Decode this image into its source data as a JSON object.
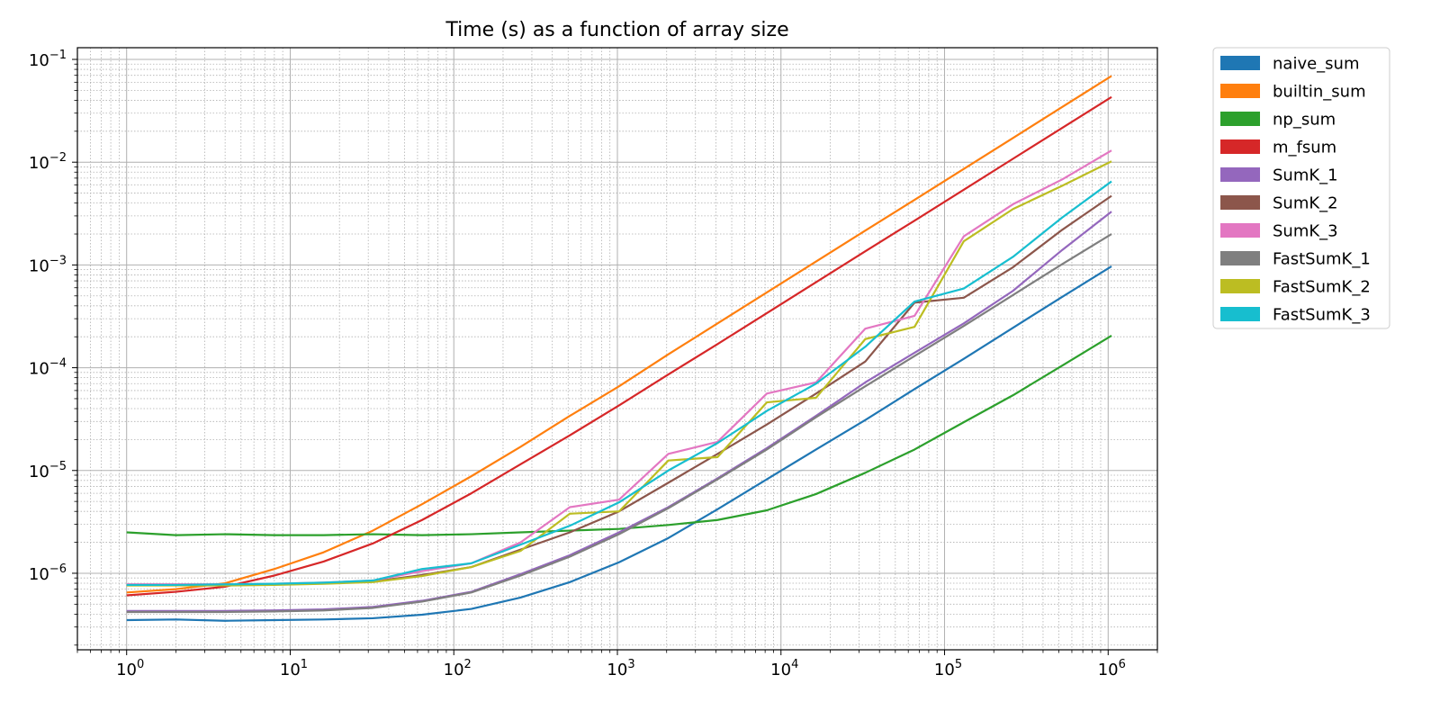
{
  "chart_data": {
    "type": "line",
    "title": "Time (s) as a function of array size",
    "xlabel": "",
    "ylabel": "",
    "xscale": "log",
    "yscale": "log",
    "xlim": [
      0.5,
      2000000
    ],
    "ylim": [
      1.8e-07,
      0.13
    ],
    "grid": "major and minor",
    "legend_position": "outside top-right",
    "x_ticks": [
      {
        "value": 1,
        "base": "10",
        "exp": "0"
      },
      {
        "value": 10,
        "base": "10",
        "exp": "1"
      },
      {
        "value": 100,
        "base": "10",
        "exp": "2"
      },
      {
        "value": 1000,
        "base": "10",
        "exp": "3"
      },
      {
        "value": 10000,
        "base": "10",
        "exp": "4"
      },
      {
        "value": 100000,
        "base": "10",
        "exp": "5"
      },
      {
        "value": 1000000,
        "base": "10",
        "exp": "6"
      }
    ],
    "y_ticks": [
      {
        "value": 1e-06,
        "base": "10",
        "exp": "−6"
      },
      {
        "value": 1e-05,
        "base": "10",
        "exp": "−5"
      },
      {
        "value": 0.0001,
        "base": "10",
        "exp": "−4"
      },
      {
        "value": 0.001,
        "base": "10",
        "exp": "−3"
      },
      {
        "value": 0.01,
        "base": "10",
        "exp": "−2"
      },
      {
        "value": 0.1,
        "base": "10",
        "exp": "−1"
      }
    ],
    "x": [
      1,
      2,
      4,
      8,
      16,
      32,
      64,
      128,
      256,
      512,
      1024,
      2048,
      4096,
      8192,
      16384,
      32768,
      65536,
      131072,
      262144,
      524288,
      1048576
    ],
    "series": [
      {
        "name": "naive_sum",
        "color": "#1f77b4",
        "values": [
          3.5e-07,
          3.55e-07,
          3.45e-07,
          3.5e-07,
          3.55e-07,
          3.65e-07,
          3.95e-07,
          4.5e-07,
          5.8e-07,
          8.2e-07,
          1.28e-06,
          2.2e-06,
          4.2e-06,
          8.2e-06,
          1.6e-05,
          3.1e-05,
          6.2e-05,
          0.000122,
          0.000245,
          0.00049,
          0.00097
        ]
      },
      {
        "name": "builtin_sum",
        "color": "#ff7f0e",
        "values": [
          6.5e-07,
          7e-07,
          8e-07,
          1.1e-06,
          1.6e-06,
          2.6e-06,
          4.7e-06,
          8.8e-06,
          1.7e-05,
          3.4e-05,
          6.6e-05,
          0.000135,
          0.00027,
          0.00054,
          0.00108,
          0.00216,
          0.0043,
          0.0086,
          0.0172,
          0.0345,
          0.069
        ]
      },
      {
        "name": "np_sum",
        "color": "#2ca02c",
        "values": [
          2.5e-06,
          2.35e-06,
          2.4e-06,
          2.35e-06,
          2.35e-06,
          2.4e-06,
          2.35e-06,
          2.4e-06,
          2.5e-06,
          2.6e-06,
          2.7e-06,
          2.95e-06,
          3.3e-06,
          4.1e-06,
          5.9e-06,
          9.5e-06,
          1.6e-05,
          2.95e-05,
          5.4e-05,
          0.000105,
          0.000205
        ]
      },
      {
        "name": "m_fsum",
        "color": "#d62728",
        "values": [
          6.1e-07,
          6.6e-07,
          7.4e-07,
          9.5e-07,
          1.3e-06,
          1.95e-06,
          3.3e-06,
          6e-06,
          1.15e-05,
          2.2e-05,
          4.3e-05,
          8.6e-05,
          0.00017,
          0.00034,
          0.00068,
          0.00136,
          0.0027,
          0.0054,
          0.0108,
          0.0216,
          0.043
        ]
      },
      {
        "name": "SumK_1",
        "color": "#9467bd",
        "values": [
          4.3e-07,
          4.3e-07,
          4.3e-07,
          4.35e-07,
          4.45e-07,
          4.7e-07,
          5.4e-07,
          6.6e-07,
          9.8e-07,
          1.5e-06,
          2.5e-06,
          4.4e-06,
          8.4e-06,
          1.65e-05,
          3.4e-05,
          7.2e-05,
          0.00014,
          0.00027,
          0.00056,
          0.0014,
          0.0033
        ]
      },
      {
        "name": "SumK_2",
        "color": "#8c564b",
        "values": [
          7.7e-07,
          7.7e-07,
          7.7e-07,
          7.8e-07,
          8e-07,
          8.3e-07,
          9.6e-07,
          1.15e-06,
          1.7e-06,
          2.5e-06,
          4e-06,
          7.6e-06,
          1.45e-05,
          2.8e-05,
          5.6e-05,
          0.000115,
          0.00043,
          0.00048,
          0.00095,
          0.0022,
          0.0047
        ]
      },
      {
        "name": "SumK_3",
        "color": "#e377c2",
        "values": [
          7.8e-07,
          7.8e-07,
          7.8e-07,
          7.9e-07,
          8.1e-07,
          8.5e-07,
          1.05e-06,
          1.25e-06,
          2e-06,
          4.4e-06,
          5.2e-06,
          1.45e-05,
          1.9e-05,
          5.6e-05,
          7.2e-05,
          0.00024,
          0.00032,
          0.0019,
          0.0039,
          0.0068,
          0.013
        ]
      },
      {
        "name": "FastSumK_1",
        "color": "#7f7f7f",
        "values": [
          4.2e-07,
          4.2e-07,
          4.2e-07,
          4.25e-07,
          4.35e-07,
          4.6e-07,
          5.3e-07,
          6.5e-07,
          9.5e-07,
          1.45e-06,
          2.4e-06,
          4.3e-06,
          8.2e-06,
          1.6e-05,
          3.3e-05,
          6.6e-05,
          0.00013,
          0.000255,
          0.00051,
          0.00102,
          0.002
        ]
      },
      {
        "name": "FastSumK_2",
        "color": "#bcbd22",
        "values": [
          7.6e-07,
          7.6e-07,
          7.6e-07,
          7.7e-07,
          7.9e-07,
          8.2e-07,
          9.4e-07,
          1.15e-06,
          1.65e-06,
          3.8e-06,
          4e-06,
          1.25e-05,
          1.35e-05,
          4.6e-05,
          5.1e-05,
          0.00019,
          0.00025,
          0.0017,
          0.0035,
          0.0059,
          0.0102
        ]
      },
      {
        "name": "FastSumK_3",
        "color": "#17becf",
        "values": [
          7.7e-07,
          7.7e-07,
          7.8e-07,
          7.9e-07,
          8.1e-07,
          8.5e-07,
          1.1e-06,
          1.25e-06,
          1.9e-06,
          2.9e-06,
          4.9e-06,
          1e-05,
          1.85e-05,
          3.8e-05,
          7e-05,
          0.00016,
          0.00044,
          0.00059,
          0.0012,
          0.0029,
          0.0065
        ]
      }
    ]
  }
}
